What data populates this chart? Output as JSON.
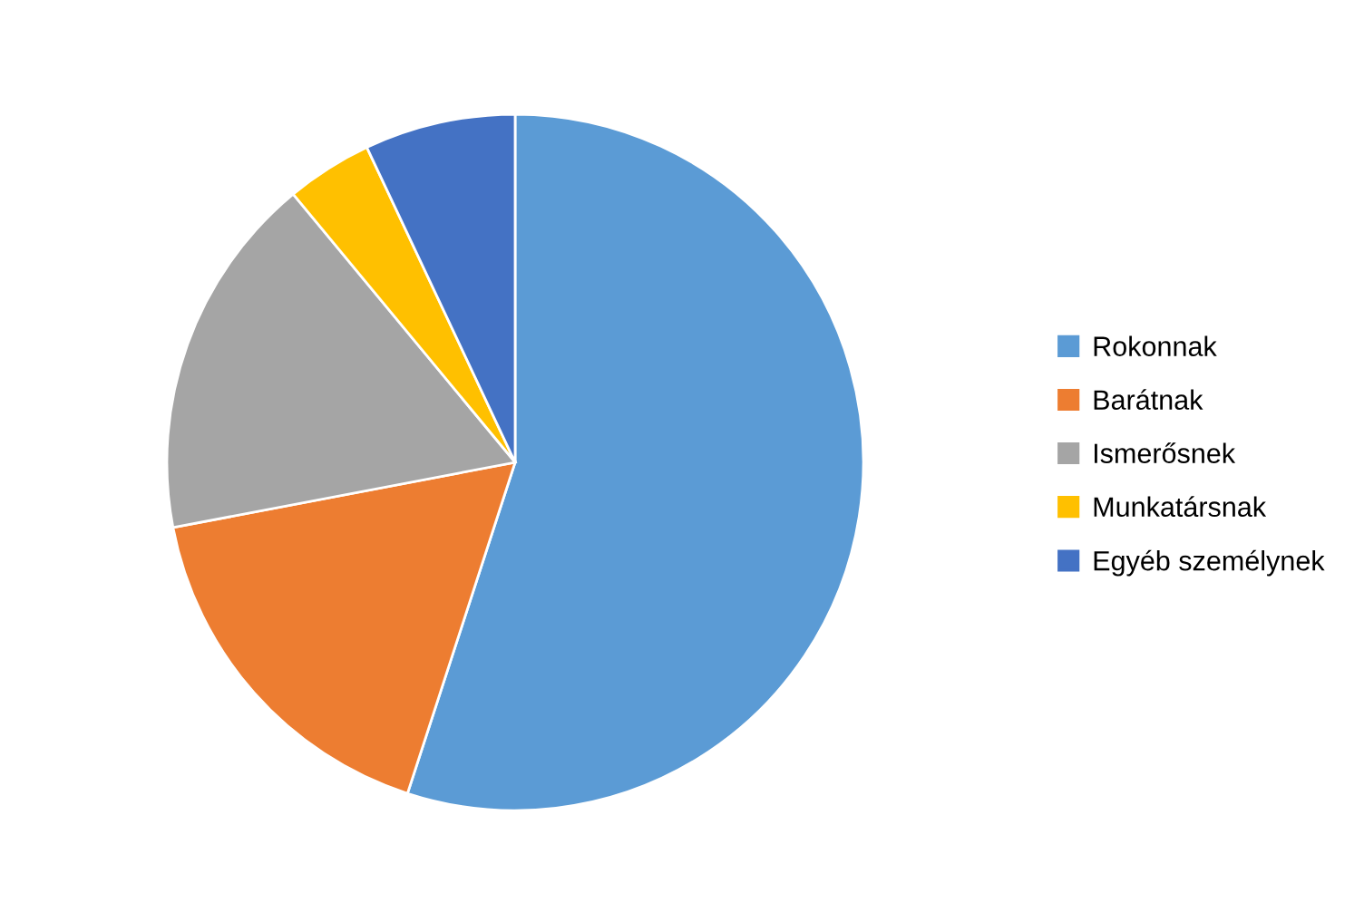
{
  "chart_data": {
    "type": "pie",
    "categories": [
      "Rokonnak",
      "Barátnak",
      "Ismerősnek",
      "Munkatársnak",
      "Egyéb személynek"
    ],
    "values": [
      55,
      17,
      17,
      4,
      7
    ],
    "colors": [
      "#5b9bd5",
      "#ed7d31",
      "#a5a5a5",
      "#ffc000",
      "#4472c4"
    ],
    "legend": "right"
  }
}
